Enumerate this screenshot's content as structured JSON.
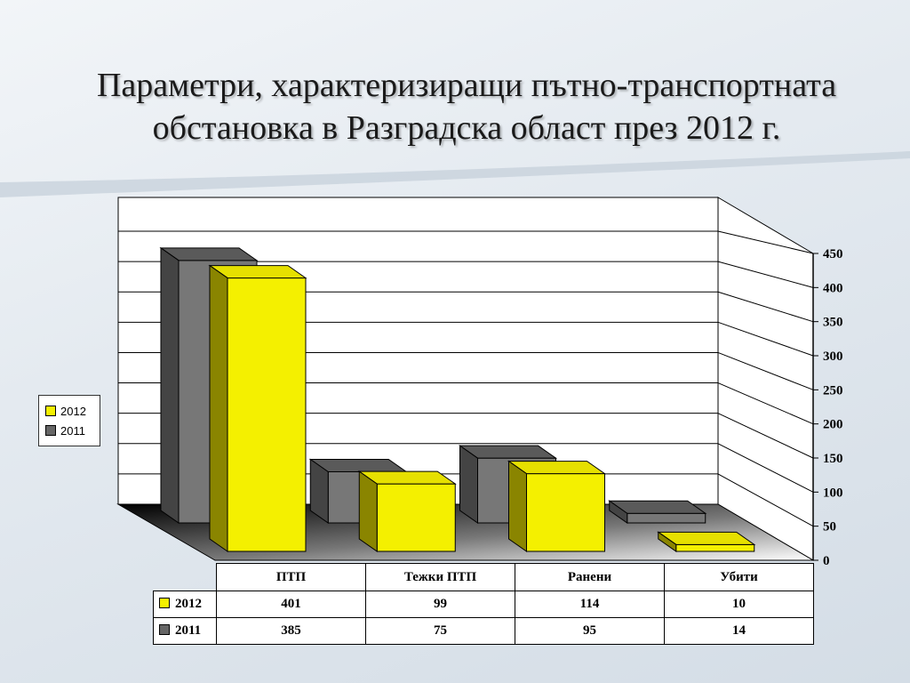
{
  "title_lines": [
    "Параметри, характеризиращи пътно-транспортната",
    "обстановка в Разградска област през 2012 г."
  ],
  "chart_data": {
    "type": "bar",
    "title": "Параметри, характеризиращи пътно-транспортната обстановка в Разградска област през 2012 г.",
    "categories": [
      "ПТП",
      "Тежки ПТП",
      "Ранени",
      "Убити"
    ],
    "series": [
      {
        "name": "2012",
        "values": [
          401,
          99,
          114,
          10
        ],
        "color": "#f4f000"
      },
      {
        "name": "2011",
        "values": [
          385,
          75,
          95,
          14
        ],
        "color": "#666666"
      }
    ],
    "ylim": [
      0,
      450
    ],
    "yticks": [
      "0",
      "50",
      "100",
      "150",
      "200",
      "250",
      "300",
      "350",
      "400",
      "450"
    ],
    "grid": true,
    "legend": "left",
    "three_d": true,
    "data_table": true
  }
}
